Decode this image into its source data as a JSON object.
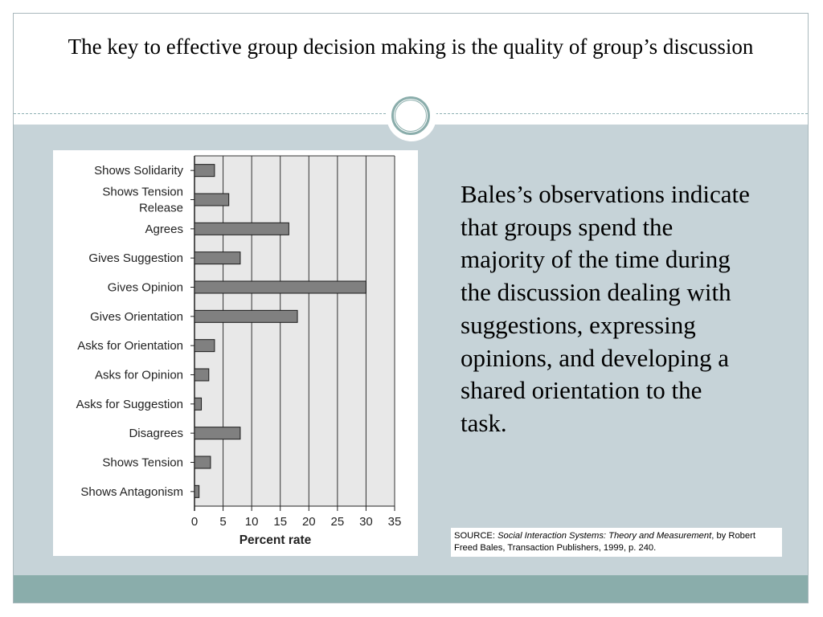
{
  "slide": {
    "title": "The key to effective group decision making is the quality of group’s discussion",
    "paragraph": "Bales’s observations indicate that groups spend the majority of the time during the discussion dealing with suggestions, expressing opinions, and developing a shared orientation to the task.",
    "source": {
      "prefix": "SOURCE: ",
      "work": "Social Interaction Systems: Theory and Measurement",
      "rest": ", by Robert Freed Bales, Transaction Publishers, 1999, p. 240."
    }
  },
  "colors": {
    "bar_fill": "#808080",
    "plot_bg": "#e8e8e8",
    "band": "#c6d3d8",
    "footer": "#8aadab"
  },
  "chart_data": {
    "type": "bar",
    "orientation": "horizontal",
    "categories": [
      [
        "Shows Solidarity"
      ],
      [
        "Shows Tension",
        "Release"
      ],
      [
        "Agrees"
      ],
      [
        "Gives Suggestion"
      ],
      [
        "Gives Opinion"
      ],
      [
        "Gives Orientation"
      ],
      [
        "Asks for Orientation"
      ],
      [
        "Asks for Opinion"
      ],
      [
        "Asks for Suggestion"
      ],
      [
        "Disagrees"
      ],
      [
        "Shows Tension"
      ],
      [
        "Shows Antagonism"
      ]
    ],
    "values": [
      3.5,
      6,
      16.5,
      8,
      30,
      18,
      3.5,
      2.5,
      1.2,
      8,
      2.8,
      0.8
    ],
    "xlabel": "Percent rate",
    "xlim": [
      0,
      35
    ],
    "xticks": [
      0,
      5,
      10,
      15,
      20,
      25,
      30,
      35
    ],
    "grid": true
  }
}
